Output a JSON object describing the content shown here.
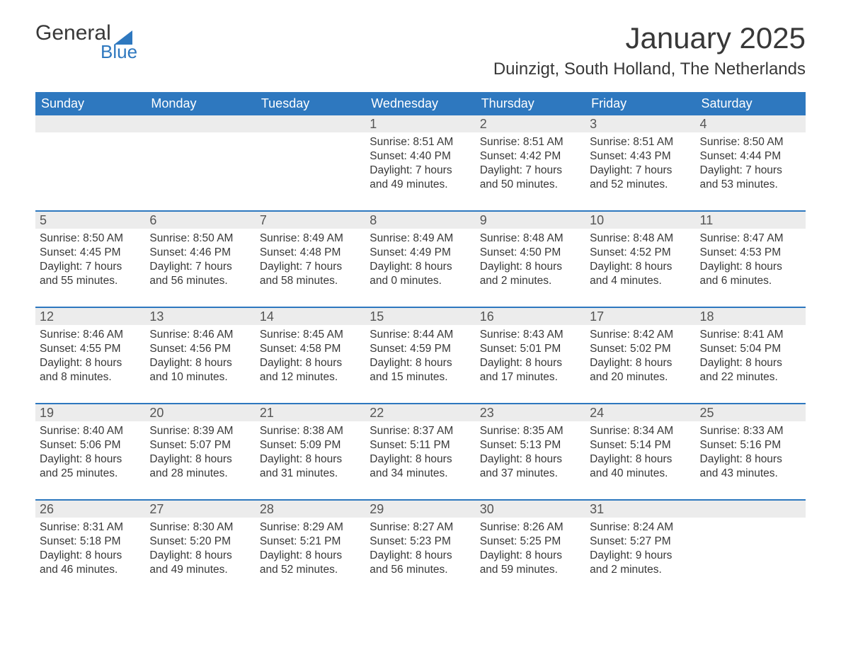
{
  "brand": {
    "name_a": "General",
    "name_b": "Blue",
    "sail_color": "#2e78bf"
  },
  "title": "January 2025",
  "location": "Duinzigt, South Holland, The Netherlands",
  "colors": {
    "header_bg": "#2e78bf",
    "header_text": "#ffffff",
    "daynum_bg": "#ececec",
    "daynum_text": "#555555",
    "body_text": "#383838",
    "row_divider": "#2e78bf"
  },
  "day_headers": [
    "Sunday",
    "Monday",
    "Tuesday",
    "Wednesday",
    "Thursday",
    "Friday",
    "Saturday"
  ],
  "weeks": [
    [
      {
        "num": "",
        "sunrise": "",
        "sunset": "",
        "day_l1": "",
        "day_l2": ""
      },
      {
        "num": "",
        "sunrise": "",
        "sunset": "",
        "day_l1": "",
        "day_l2": ""
      },
      {
        "num": "",
        "sunrise": "",
        "sunset": "",
        "day_l1": "",
        "day_l2": ""
      },
      {
        "num": "1",
        "sunrise": "Sunrise: 8:51 AM",
        "sunset": "Sunset: 4:40 PM",
        "day_l1": "Daylight: 7 hours",
        "day_l2": "and 49 minutes."
      },
      {
        "num": "2",
        "sunrise": "Sunrise: 8:51 AM",
        "sunset": "Sunset: 4:42 PM",
        "day_l1": "Daylight: 7 hours",
        "day_l2": "and 50 minutes."
      },
      {
        "num": "3",
        "sunrise": "Sunrise: 8:51 AM",
        "sunset": "Sunset: 4:43 PM",
        "day_l1": "Daylight: 7 hours",
        "day_l2": "and 52 minutes."
      },
      {
        "num": "4",
        "sunrise": "Sunrise: 8:50 AM",
        "sunset": "Sunset: 4:44 PM",
        "day_l1": "Daylight: 7 hours",
        "day_l2": "and 53 minutes."
      }
    ],
    [
      {
        "num": "5",
        "sunrise": "Sunrise: 8:50 AM",
        "sunset": "Sunset: 4:45 PM",
        "day_l1": "Daylight: 7 hours",
        "day_l2": "and 55 minutes."
      },
      {
        "num": "6",
        "sunrise": "Sunrise: 8:50 AM",
        "sunset": "Sunset: 4:46 PM",
        "day_l1": "Daylight: 7 hours",
        "day_l2": "and 56 minutes."
      },
      {
        "num": "7",
        "sunrise": "Sunrise: 8:49 AM",
        "sunset": "Sunset: 4:48 PM",
        "day_l1": "Daylight: 7 hours",
        "day_l2": "and 58 minutes."
      },
      {
        "num": "8",
        "sunrise": "Sunrise: 8:49 AM",
        "sunset": "Sunset: 4:49 PM",
        "day_l1": "Daylight: 8 hours",
        "day_l2": "and 0 minutes."
      },
      {
        "num": "9",
        "sunrise": "Sunrise: 8:48 AM",
        "sunset": "Sunset: 4:50 PM",
        "day_l1": "Daylight: 8 hours",
        "day_l2": "and 2 minutes."
      },
      {
        "num": "10",
        "sunrise": "Sunrise: 8:48 AM",
        "sunset": "Sunset: 4:52 PM",
        "day_l1": "Daylight: 8 hours",
        "day_l2": "and 4 minutes."
      },
      {
        "num": "11",
        "sunrise": "Sunrise: 8:47 AM",
        "sunset": "Sunset: 4:53 PM",
        "day_l1": "Daylight: 8 hours",
        "day_l2": "and 6 minutes."
      }
    ],
    [
      {
        "num": "12",
        "sunrise": "Sunrise: 8:46 AM",
        "sunset": "Sunset: 4:55 PM",
        "day_l1": "Daylight: 8 hours",
        "day_l2": "and 8 minutes."
      },
      {
        "num": "13",
        "sunrise": "Sunrise: 8:46 AM",
        "sunset": "Sunset: 4:56 PM",
        "day_l1": "Daylight: 8 hours",
        "day_l2": "and 10 minutes."
      },
      {
        "num": "14",
        "sunrise": "Sunrise: 8:45 AM",
        "sunset": "Sunset: 4:58 PM",
        "day_l1": "Daylight: 8 hours",
        "day_l2": "and 12 minutes."
      },
      {
        "num": "15",
        "sunrise": "Sunrise: 8:44 AM",
        "sunset": "Sunset: 4:59 PM",
        "day_l1": "Daylight: 8 hours",
        "day_l2": "and 15 minutes."
      },
      {
        "num": "16",
        "sunrise": "Sunrise: 8:43 AM",
        "sunset": "Sunset: 5:01 PM",
        "day_l1": "Daylight: 8 hours",
        "day_l2": "and 17 minutes."
      },
      {
        "num": "17",
        "sunrise": "Sunrise: 8:42 AM",
        "sunset": "Sunset: 5:02 PM",
        "day_l1": "Daylight: 8 hours",
        "day_l2": "and 20 minutes."
      },
      {
        "num": "18",
        "sunrise": "Sunrise: 8:41 AM",
        "sunset": "Sunset: 5:04 PM",
        "day_l1": "Daylight: 8 hours",
        "day_l2": "and 22 minutes."
      }
    ],
    [
      {
        "num": "19",
        "sunrise": "Sunrise: 8:40 AM",
        "sunset": "Sunset: 5:06 PM",
        "day_l1": "Daylight: 8 hours",
        "day_l2": "and 25 minutes."
      },
      {
        "num": "20",
        "sunrise": "Sunrise: 8:39 AM",
        "sunset": "Sunset: 5:07 PM",
        "day_l1": "Daylight: 8 hours",
        "day_l2": "and 28 minutes."
      },
      {
        "num": "21",
        "sunrise": "Sunrise: 8:38 AM",
        "sunset": "Sunset: 5:09 PM",
        "day_l1": "Daylight: 8 hours",
        "day_l2": "and 31 minutes."
      },
      {
        "num": "22",
        "sunrise": "Sunrise: 8:37 AM",
        "sunset": "Sunset: 5:11 PM",
        "day_l1": "Daylight: 8 hours",
        "day_l2": "and 34 minutes."
      },
      {
        "num": "23",
        "sunrise": "Sunrise: 8:35 AM",
        "sunset": "Sunset: 5:13 PM",
        "day_l1": "Daylight: 8 hours",
        "day_l2": "and 37 minutes."
      },
      {
        "num": "24",
        "sunrise": "Sunrise: 8:34 AM",
        "sunset": "Sunset: 5:14 PM",
        "day_l1": "Daylight: 8 hours",
        "day_l2": "and 40 minutes."
      },
      {
        "num": "25",
        "sunrise": "Sunrise: 8:33 AM",
        "sunset": "Sunset: 5:16 PM",
        "day_l1": "Daylight: 8 hours",
        "day_l2": "and 43 minutes."
      }
    ],
    [
      {
        "num": "26",
        "sunrise": "Sunrise: 8:31 AM",
        "sunset": "Sunset: 5:18 PM",
        "day_l1": "Daylight: 8 hours",
        "day_l2": "and 46 minutes."
      },
      {
        "num": "27",
        "sunrise": "Sunrise: 8:30 AM",
        "sunset": "Sunset: 5:20 PM",
        "day_l1": "Daylight: 8 hours",
        "day_l2": "and 49 minutes."
      },
      {
        "num": "28",
        "sunrise": "Sunrise: 8:29 AM",
        "sunset": "Sunset: 5:21 PM",
        "day_l1": "Daylight: 8 hours",
        "day_l2": "and 52 minutes."
      },
      {
        "num": "29",
        "sunrise": "Sunrise: 8:27 AM",
        "sunset": "Sunset: 5:23 PM",
        "day_l1": "Daylight: 8 hours",
        "day_l2": "and 56 minutes."
      },
      {
        "num": "30",
        "sunrise": "Sunrise: 8:26 AM",
        "sunset": "Sunset: 5:25 PM",
        "day_l1": "Daylight: 8 hours",
        "day_l2": "and 59 minutes."
      },
      {
        "num": "31",
        "sunrise": "Sunrise: 8:24 AM",
        "sunset": "Sunset: 5:27 PM",
        "day_l1": "Daylight: 9 hours",
        "day_l2": "and 2 minutes."
      },
      {
        "num": "",
        "sunrise": "",
        "sunset": "",
        "day_l1": "",
        "day_l2": ""
      }
    ]
  ]
}
